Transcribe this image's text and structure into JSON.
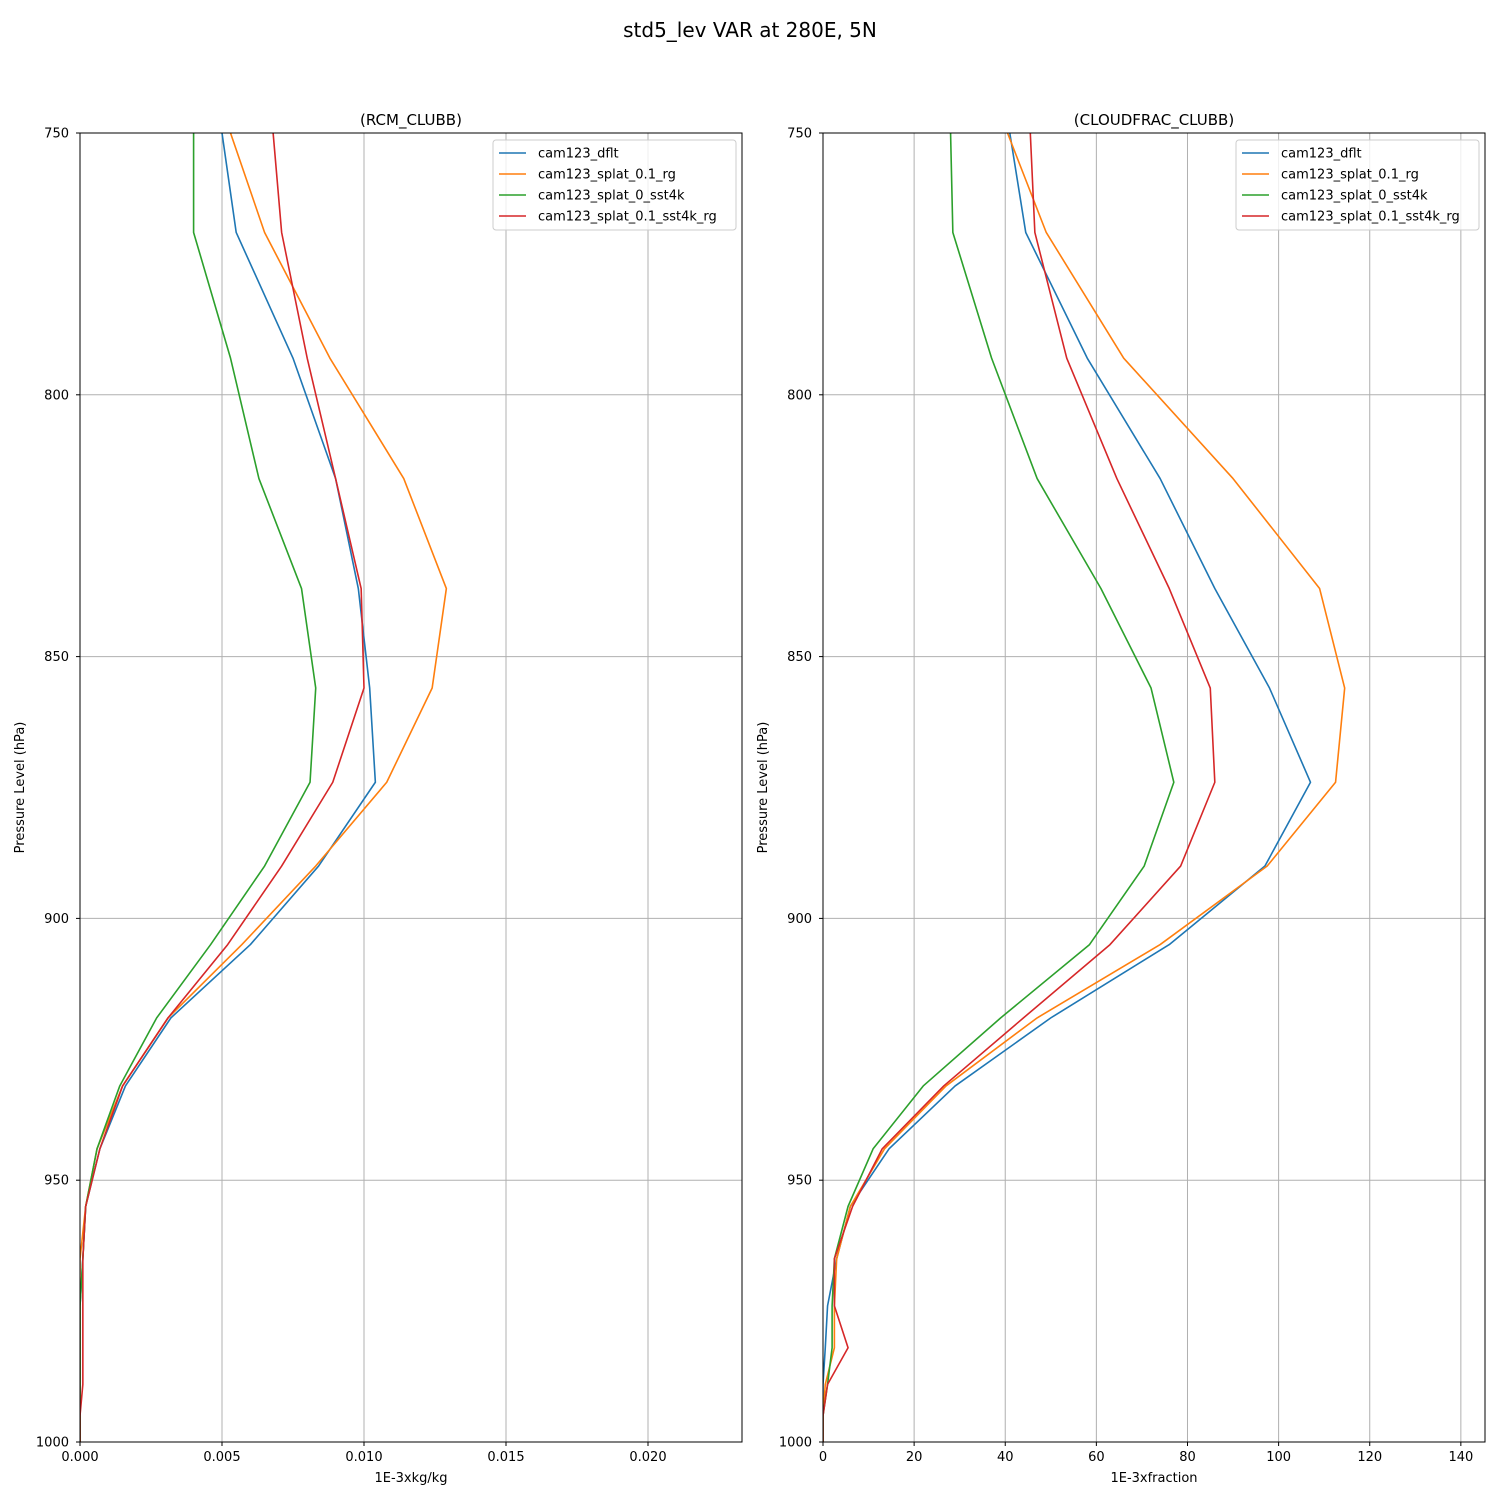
{
  "suptitle": "std5_lev VAR at 280E, 5N",
  "colors": {
    "cam123_dflt": "#1f77b4",
    "cam123_splat_0.1_rg": "#ff7f0e",
    "cam123_splat_0_sst4k": "#2ca02c",
    "cam123_splat_0.1_sst4k_rg": "#d62728",
    "grid": "#b0b0b0"
  },
  "chart_data": [
    {
      "type": "line",
      "title": "(RCM_CLUBB)",
      "xlabel": "1E-3xkg/kg",
      "ylabel": "Pressure Level (hPa)",
      "xlim": [
        0,
        0.02331
      ],
      "ylim": [
        1000,
        750
      ],
      "y_inverted": true,
      "grid": true,
      "legend_loc": "upper right",
      "xticks": [
        0,
        0.005,
        0.01,
        0.015,
        0.02
      ],
      "xtick_labels": [
        "0.000",
        "0.005",
        "0.010",
        "0.015",
        "0.020"
      ],
      "yticks": [
        750,
        800,
        850,
        900,
        950,
        1000
      ],
      "ytick_labels": [
        "750",
        "800",
        "850",
        "900",
        "950",
        "1000"
      ],
      "series": [
        {
          "name": "cam123_dflt",
          "points": [
            [
              0.005,
              750
            ],
            [
              0.0055,
              769
            ],
            [
              0.0075,
              793
            ],
            [
              0.009,
              816
            ],
            [
              0.0098,
              837
            ],
            [
              0.0102,
              856
            ],
            [
              0.0104,
              874
            ],
            [
              0.0084,
              890
            ],
            [
              0.006,
              905
            ],
            [
              0.0032,
              919
            ],
            [
              0.0016,
              932
            ],
            [
              0.0007,
              944
            ],
            [
              0.0002,
              955
            ],
            [
              0.0001,
              965
            ],
            [
              0.0,
              974
            ],
            [
              0.0,
              982
            ],
            [
              0.0,
              989
            ],
            [
              0.0,
              995
            ],
            [
              0.0,
              1000
            ]
          ]
        },
        {
          "name": "cam123_splat_0.1_rg",
          "points": [
            [
              0.0053,
              750
            ],
            [
              0.0065,
              769
            ],
            [
              0.0088,
              793
            ],
            [
              0.0114,
              816
            ],
            [
              0.0129,
              837
            ],
            [
              0.0124,
              856
            ],
            [
              0.0108,
              874
            ],
            [
              0.0083,
              890
            ],
            [
              0.0057,
              905
            ],
            [
              0.0031,
              919
            ],
            [
              0.0015,
              932
            ],
            [
              0.0006,
              944
            ],
            [
              0.0002,
              955
            ],
            [
              0.0,
              965
            ],
            [
              0.0,
              974
            ],
            [
              0.0,
              982
            ],
            [
              0.0,
              989
            ],
            [
              0.0,
              995
            ],
            [
              0.0,
              1000
            ]
          ]
        },
        {
          "name": "cam123_splat_0_sst4k",
          "points": [
            [
              0.004,
              750
            ],
            [
              0.004,
              769
            ],
            [
              0.0053,
              793
            ],
            [
              0.0063,
              816
            ],
            [
              0.0078,
              837
            ],
            [
              0.0083,
              856
            ],
            [
              0.0081,
              874
            ],
            [
              0.0065,
              890
            ],
            [
              0.0046,
              905
            ],
            [
              0.0027,
              919
            ],
            [
              0.0014,
              932
            ],
            [
              0.0006,
              944
            ],
            [
              0.0002,
              955
            ],
            [
              0.0001,
              965
            ],
            [
              0.0,
              974
            ],
            [
              0.0,
              982
            ],
            [
              0.0,
              989
            ],
            [
              0.0,
              995
            ],
            [
              0.0,
              1000
            ]
          ]
        },
        {
          "name": "cam123_splat_0.1_sst4k_rg",
          "points": [
            [
              0.0068,
              750
            ],
            [
              0.0071,
              769
            ],
            [
              0.008,
              793
            ],
            [
              0.009,
              816
            ],
            [
              0.0099,
              837
            ],
            [
              0.01,
              856
            ],
            [
              0.0089,
              874
            ],
            [
              0.0071,
              890
            ],
            [
              0.0052,
              905
            ],
            [
              0.0031,
              919
            ],
            [
              0.0015,
              932
            ],
            [
              0.0007,
              944
            ],
            [
              0.0002,
              955
            ],
            [
              0.0001,
              965
            ],
            [
              0.0001,
              974
            ],
            [
              0.0001,
              982
            ],
            [
              0.0001,
              989
            ],
            [
              0.0,
              995
            ],
            [
              0.0,
              1000
            ]
          ]
        }
      ]
    },
    {
      "type": "line",
      "title": "(CLOUDFRAC_CLUBB)",
      "xlabel": "1E-3xfraction",
      "ylabel": "Pressure Level (hPa)",
      "xlim": [
        0,
        145.3
      ],
      "ylim": [
        1000,
        750
      ],
      "y_inverted": true,
      "grid": true,
      "legend_loc": "upper right",
      "xticks": [
        0,
        20,
        40,
        60,
        80,
        100,
        120,
        140
      ],
      "xtick_labels": [
        "0",
        "20",
        "40",
        "60",
        "80",
        "100",
        "120",
        "140"
      ],
      "yticks": [
        750,
        800,
        850,
        900,
        950,
        1000
      ],
      "ytick_labels": [
        "750",
        "800",
        "850",
        "900",
        "950",
        "1000"
      ],
      "series": [
        {
          "name": "cam123_dflt",
          "points": [
            [
              41,
              750
            ],
            [
              44.5,
              769
            ],
            [
              58,
              793
            ],
            [
              74,
              816
            ],
            [
              86,
              837
            ],
            [
              98,
              856
            ],
            [
              107,
              874
            ],
            [
              97,
              890
            ],
            [
              76,
              905
            ],
            [
              50,
              919
            ],
            [
              29,
              932
            ],
            [
              14.5,
              944
            ],
            [
              6,
              955
            ],
            [
              3,
              965
            ],
            [
              1,
              974
            ],
            [
              0.5,
              982
            ],
            [
              0,
              989
            ],
            [
              0,
              995
            ],
            [
              0,
              1000
            ]
          ]
        },
        {
          "name": "cam123_splat_0.1_rg",
          "points": [
            [
              40.5,
              750
            ],
            [
              49,
              769
            ],
            [
              66,
              793
            ],
            [
              90,
              816
            ],
            [
              109,
              837
            ],
            [
              114.5,
              856
            ],
            [
              112.5,
              874
            ],
            [
              97.5,
              890
            ],
            [
              74,
              905
            ],
            [
              47,
              919
            ],
            [
              27,
              932
            ],
            [
              13.5,
              944
            ],
            [
              6,
              955
            ],
            [
              3,
              965
            ],
            [
              2.5,
              974
            ],
            [
              2.5,
              982
            ],
            [
              0.5,
              989
            ],
            [
              0,
              995
            ],
            [
              0,
              1000
            ]
          ]
        },
        {
          "name": "cam123_splat_0_sst4k",
          "points": [
            [
              28,
              750
            ],
            [
              28.5,
              769
            ],
            [
              37,
              793
            ],
            [
              47,
              816
            ],
            [
              61,
              837
            ],
            [
              72,
              856
            ],
            [
              77,
              874
            ],
            [
              70.5,
              890
            ],
            [
              58.5,
              905
            ],
            [
              39,
              919
            ],
            [
              22,
              932
            ],
            [
              11,
              944
            ],
            [
              5.5,
              955
            ],
            [
              2.5,
              965
            ],
            [
              2,
              974
            ],
            [
              2,
              982
            ],
            [
              1,
              989
            ],
            [
              0,
              995
            ],
            [
              0,
              1000
            ]
          ]
        },
        {
          "name": "cam123_splat_0.1_sst4k_rg",
          "points": [
            [
              45.5,
              750
            ],
            [
              46.5,
              769
            ],
            [
              53.5,
              793
            ],
            [
              64.5,
              816
            ],
            [
              76,
              837
            ],
            [
              85,
              856
            ],
            [
              86,
              874
            ],
            [
              78.5,
              890
            ],
            [
              63,
              905
            ],
            [
              44,
              919
            ],
            [
              26.5,
              932
            ],
            [
              13,
              944
            ],
            [
              6.5,
              955
            ],
            [
              2.5,
              965
            ],
            [
              2.5,
              974
            ],
            [
              5.5,
              982
            ],
            [
              1,
              989
            ],
            [
              0,
              995
            ],
            [
              0,
              1000
            ]
          ]
        }
      ]
    }
  ]
}
